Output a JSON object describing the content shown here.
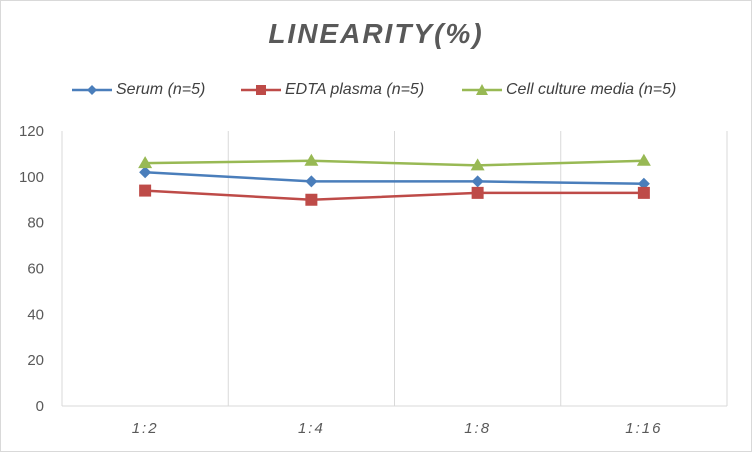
{
  "chart_data": {
    "type": "line",
    "title": "LINEARITY(%)",
    "categories": [
      "1:2",
      "1:4",
      "1:8",
      "1:16"
    ],
    "ylim": [
      0,
      120
    ],
    "yticks": [
      0,
      20,
      40,
      60,
      80,
      100,
      120
    ],
    "grid": "vertical",
    "legend_position": "top",
    "series": [
      {
        "name": "Serum (n=5)",
        "color": "#4a7ebb",
        "marker": "diamond",
        "values": [
          102,
          98,
          98,
          97
        ]
      },
      {
        "name": "EDTA plasma (n=5)",
        "color": "#be4b48",
        "marker": "square",
        "values": [
          94,
          90,
          93,
          93
        ]
      },
      {
        "name": "Cell culture media (n=5)",
        "color": "#98b954",
        "marker": "triangle",
        "values": [
          106,
          107,
          105,
          107
        ]
      }
    ]
  }
}
